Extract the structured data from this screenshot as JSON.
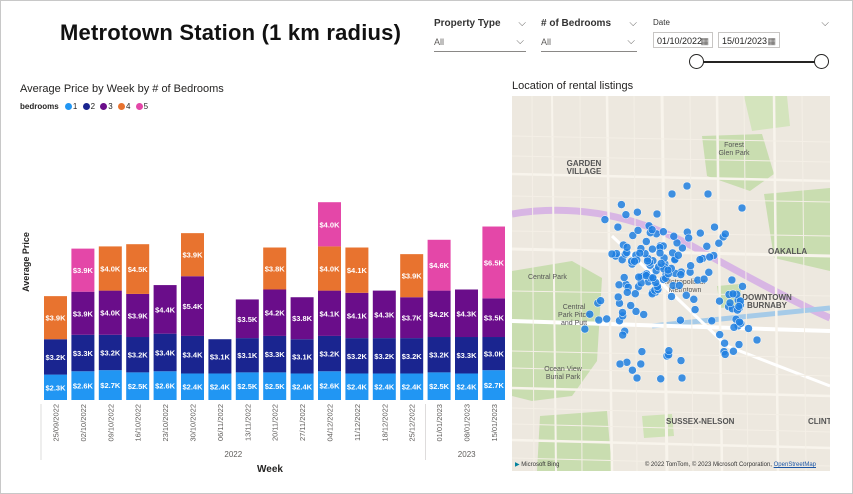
{
  "report_title": "Metrotown Station (1 km radius)",
  "slicers": {
    "property_type": {
      "label": "Property Type",
      "value": "All"
    },
    "bedrooms": {
      "label": "# of Bedrooms",
      "value": "All"
    },
    "date": {
      "label": "Date",
      "start": "01/10/2022",
      "end": "15/01/2023"
    }
  },
  "bar_visual": {
    "title": "Average Price by Week by # of Bedrooms",
    "legend_title": "bedrooms",
    "legend_items": [
      "1",
      "2",
      "3",
      "4",
      "5"
    ]
  },
  "map_visual": {
    "title": "Location of rental listings",
    "labels": {
      "garden_village": "GARDEN VILLAGE",
      "forest_glen": "Forest Glen Park",
      "oakalla": "OAKALLA",
      "central_park": "Central Park",
      "central_park_pitch": "Central Park Pitch and Putt",
      "metropolis": "Metropolis at Metrotown",
      "downtown_burnaby": "DOWNTOWN BURNABY",
      "ocean_view": "Ocean View Burial Park",
      "sussex": "SUSSEX-NELSON",
      "clinton": "CLINTO"
    },
    "attribution": {
      "bing": "Microsoft Bing",
      "copyright": "© 2022 TomTom, © 2023 Microsoft Corporation,",
      "osm": "OpenStreetMap"
    }
  },
  "colors": {
    "1": "#2196f3",
    "2": "#1a2590",
    "3": "#6a0d8a",
    "4": "#e8732f",
    "5": "#e447a8"
  },
  "chart_data": {
    "type": "bar",
    "stacked": true,
    "title": "Average Price by Week by # of Bedrooms",
    "xlabel": "Week",
    "ylabel": "Average Price",
    "year_labels": [
      "2022",
      "2023"
    ],
    "categories": [
      "25/09/2022",
      "02/10/2022",
      "09/10/2022",
      "16/10/2022",
      "23/10/2022",
      "30/10/2022",
      "06/11/2022",
      "13/11/2022",
      "20/11/2022",
      "27/11/2022",
      "04/12/2022",
      "11/12/2022",
      "18/12/2022",
      "25/12/2022",
      "01/01/2023",
      "08/01/2023",
      "15/01/2023"
    ],
    "series": [
      {
        "name": "1",
        "values": [
          2.3,
          2.6,
          2.7,
          2.5,
          2.6,
          2.4,
          2.4,
          2.5,
          2.5,
          2.4,
          2.6,
          2.4,
          2.4,
          2.4,
          2.5,
          2.4,
          2.7
        ]
      },
      {
        "name": "2",
        "values": [
          3.2,
          3.3,
          3.2,
          3.2,
          3.4,
          3.4,
          3.1,
          3.1,
          3.3,
          3.1,
          3.2,
          3.2,
          3.2,
          3.2,
          3.2,
          3.3,
          3.0
        ]
      },
      {
        "name": "3",
        "values": [
          null,
          3.9,
          4.0,
          3.9,
          4.4,
          5.4,
          null,
          3.5,
          4.2,
          3.8,
          4.1,
          4.1,
          4.3,
          3.7,
          4.2,
          4.3,
          3.5
        ]
      },
      {
        "name": "4",
        "values": [
          3.9,
          null,
          4.0,
          4.5,
          null,
          3.9,
          null,
          null,
          3.8,
          null,
          4.0,
          4.1,
          null,
          3.9,
          null,
          null,
          null
        ]
      },
      {
        "name": "5",
        "values": [
          null,
          3.9,
          null,
          null,
          null,
          null,
          null,
          null,
          null,
          null,
          4.0,
          null,
          null,
          null,
          4.6,
          null,
          6.5
        ]
      }
    ],
    "value_format": "$XK"
  }
}
